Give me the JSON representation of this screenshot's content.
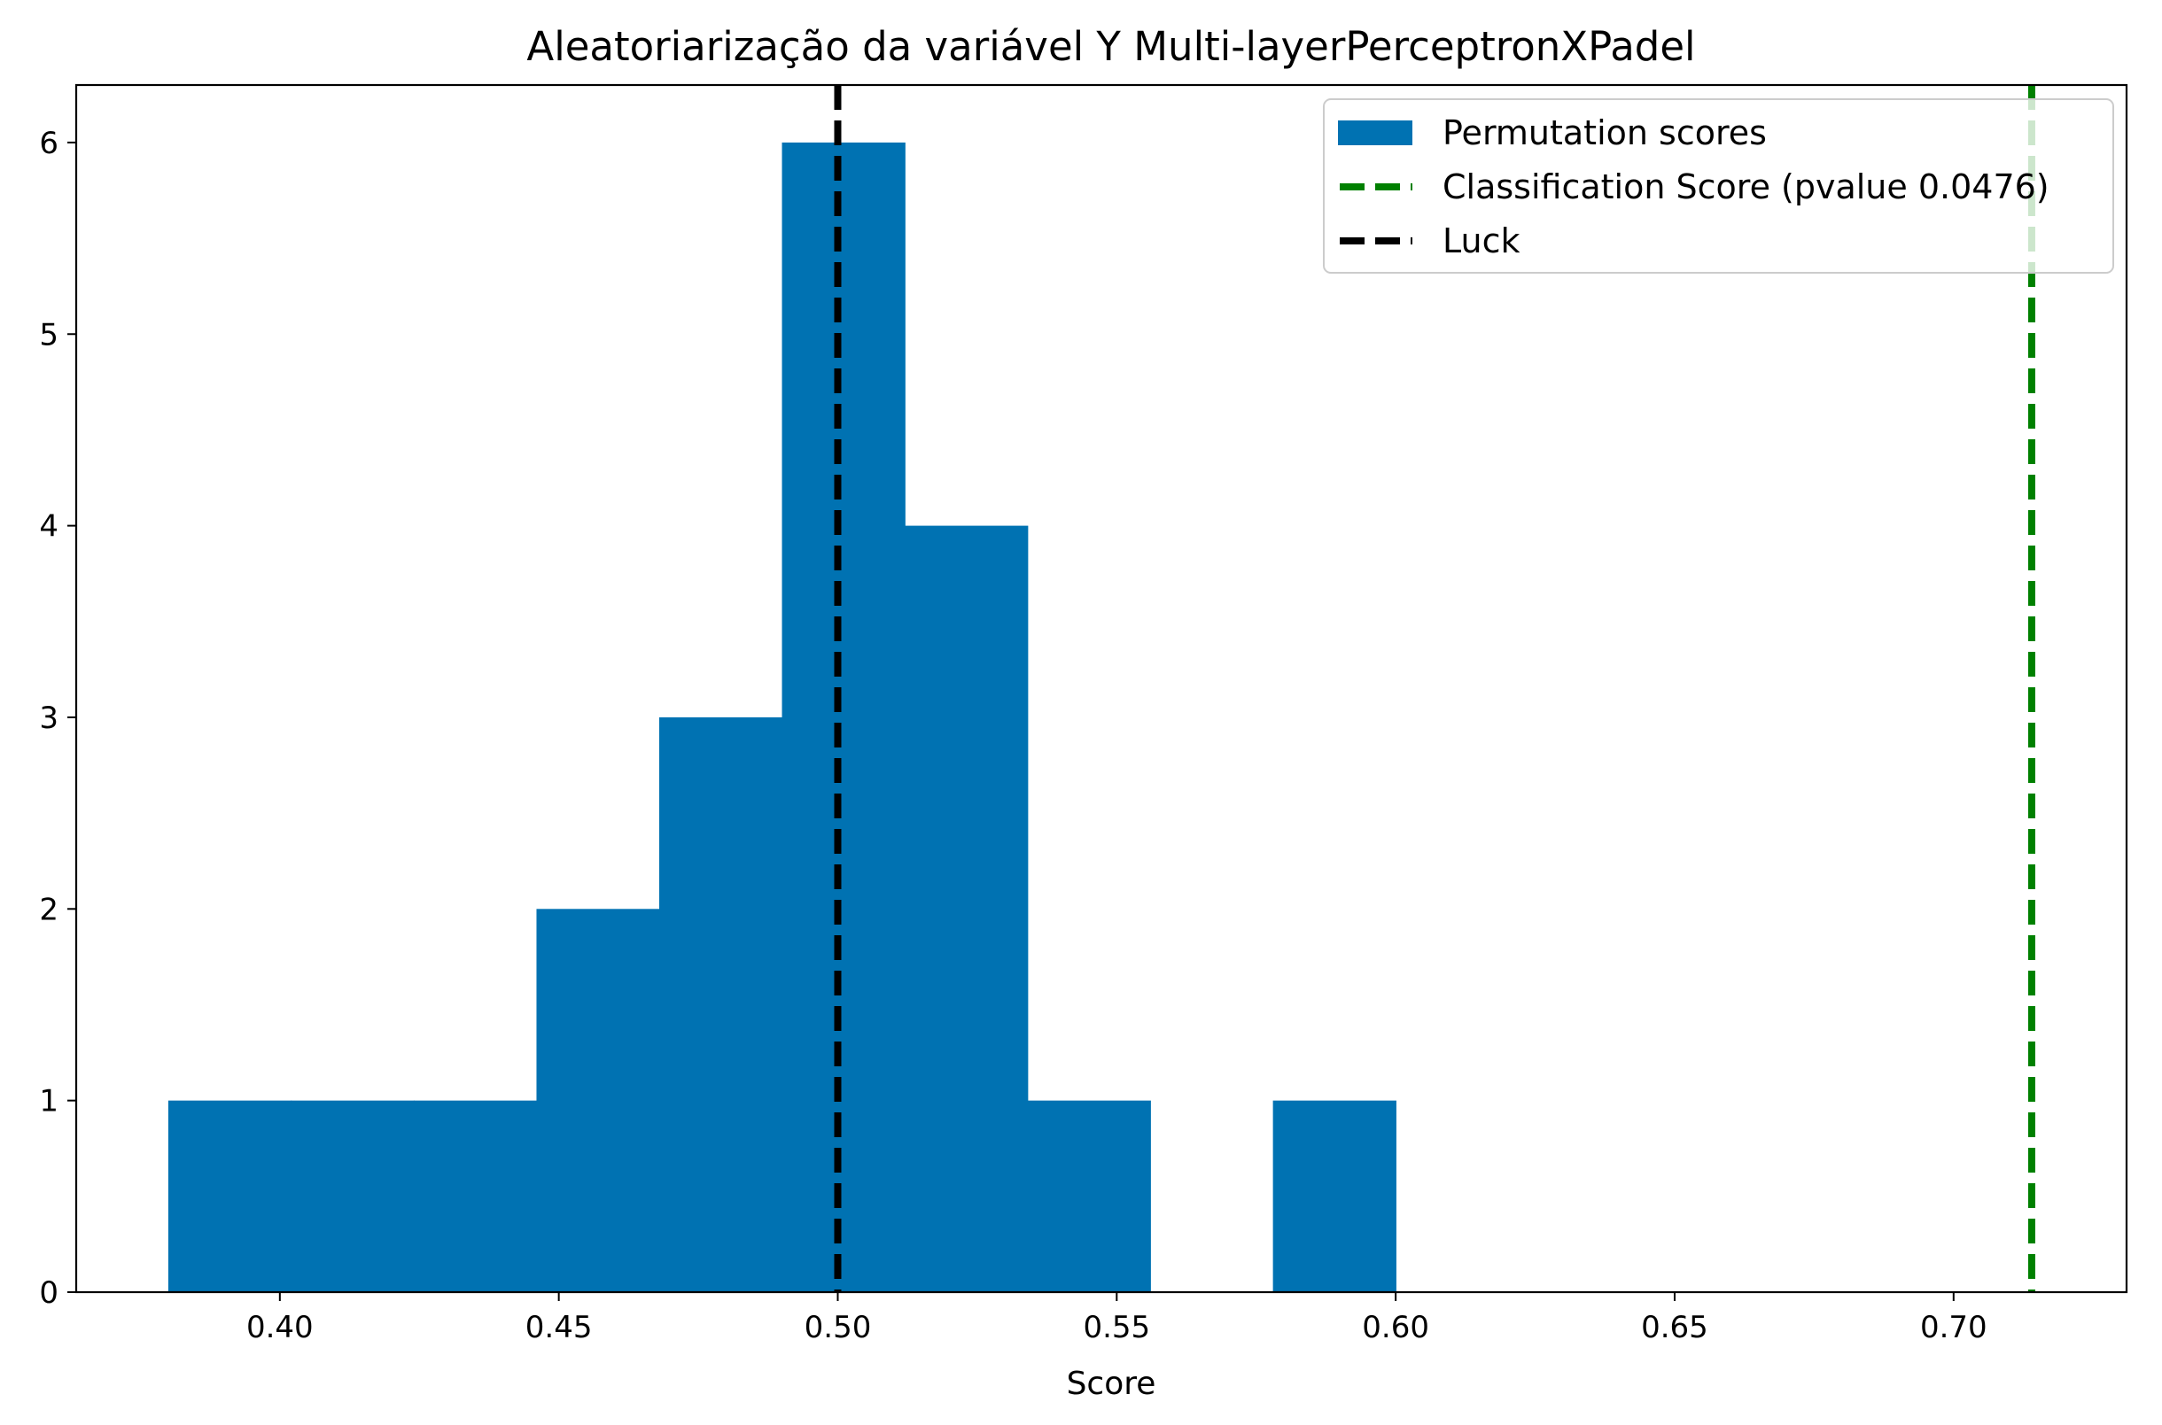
{
  "chart_data": {
    "type": "bar",
    "title": "Aleatoriarização da variável Y Multi-layerPerceptronXPadel",
    "xlabel": "Score",
    "ylabel": "",
    "xlim": [
      0.3635,
      0.731
    ],
    "ylim": [
      0,
      6.3
    ],
    "xticks": [
      0.4,
      0.45,
      0.5,
      0.55,
      0.6,
      0.65,
      0.7
    ],
    "xtick_labels": [
      "0.40",
      "0.45",
      "0.50",
      "0.55",
      "0.60",
      "0.65",
      "0.70"
    ],
    "yticks": [
      0,
      1,
      2,
      3,
      4,
      5,
      6
    ],
    "ytick_labels": [
      "0",
      "1",
      "2",
      "3",
      "4",
      "5",
      "6"
    ],
    "bin_edges": [
      0.38,
      0.402,
      0.424,
      0.446,
      0.468,
      0.49,
      0.512,
      0.534,
      0.556,
      0.578,
      0.6
    ],
    "counts": [
      1,
      1,
      1,
      2,
      3,
      6,
      4,
      1,
      0,
      1
    ],
    "bar_color": "#0072B2",
    "lines": [
      {
        "name": "Classification Score (pvalue 0.0476)",
        "x": 0.714,
        "color": "#008000",
        "style": "dashed"
      },
      {
        "name": "Luck",
        "x": 0.5,
        "color": "#000000",
        "style": "dashed"
      }
    ],
    "legend": {
      "position": "top-right",
      "entries": [
        {
          "label": "Permutation scores",
          "kind": "patch",
          "color": "#0072B2"
        },
        {
          "label": "Classification Score (pvalue 0.0476)",
          "kind": "dashed",
          "color": "#008000"
        },
        {
          "label": "Luck",
          "kind": "dashed",
          "color": "#000000"
        }
      ]
    },
    "grid": false
  }
}
